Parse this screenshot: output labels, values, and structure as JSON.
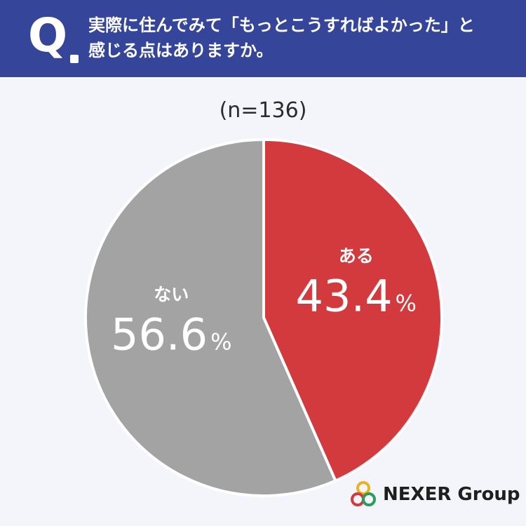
{
  "question": {
    "label": "Q",
    "line1": "実際に住んでみて「もっとこうすればよかった」と",
    "line2": "感じる点はありますか。"
  },
  "sample_size": "(n=136)",
  "chart_data": {
    "type": "pie",
    "slices": [
      {
        "label": "ある",
        "value": 43.4,
        "display": "43.4",
        "unit": "%",
        "color": "#d33a3e"
      },
      {
        "label": "ない",
        "value": 56.6,
        "display": "56.6",
        "unit": "%",
        "color": "#a3a3a3"
      }
    ],
    "start": "12 o'clock",
    "direction": "clockwise"
  },
  "logo": {
    "text": "NEXER Group",
    "ring_colors": [
      "#e9b323",
      "#d33a3e",
      "#2f9a5a"
    ]
  }
}
